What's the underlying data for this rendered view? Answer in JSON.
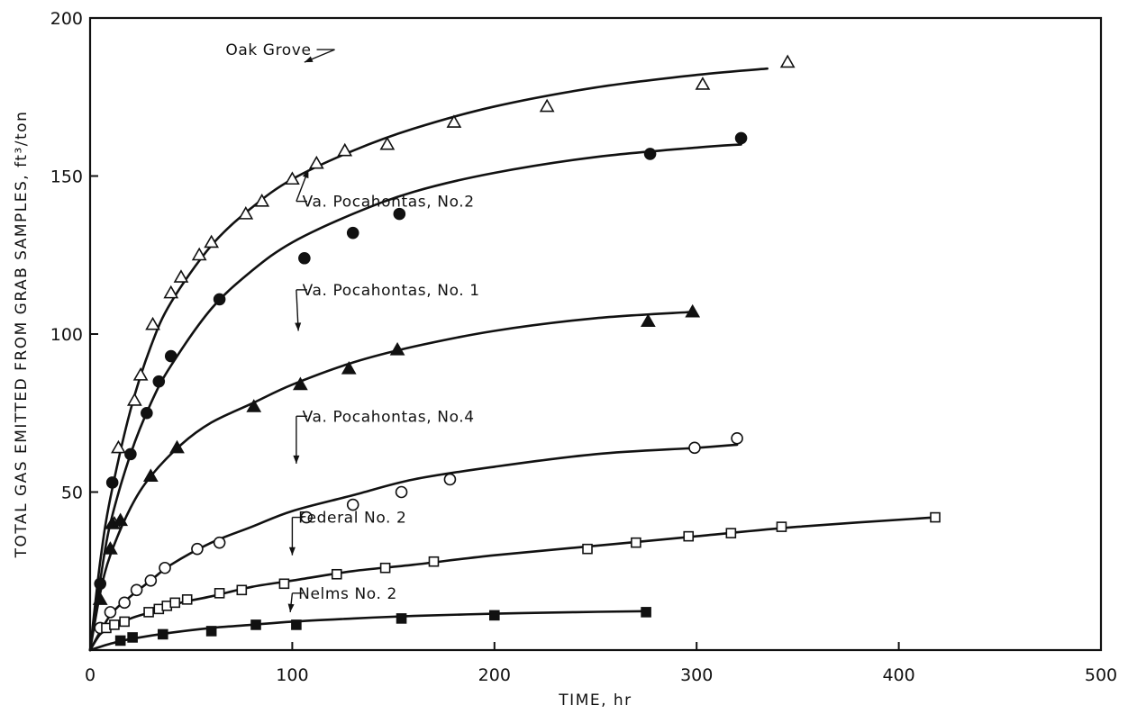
{
  "chart_data": {
    "type": "scatter",
    "title": "",
    "xlabel": "TIME, hr",
    "ylabel": "TOTAL GAS EMITTED FROM GRAB SAMPLES, ft³/ton",
    "xlim": [
      0,
      500
    ],
    "ylim": [
      0,
      200
    ],
    "xticks": [
      "0",
      "100",
      "200",
      "300",
      "400",
      "500"
    ],
    "yticks": [
      "50",
      "100",
      "150",
      "200"
    ],
    "grid": false,
    "series": [
      {
        "name": "Oak Grove",
        "marker": "open-triangle",
        "points": [
          [
            12,
            40
          ],
          [
            14,
            64
          ],
          [
            22,
            79
          ],
          [
            25,
            87
          ],
          [
            31,
            103
          ],
          [
            40,
            113
          ],
          [
            45,
            118
          ],
          [
            54,
            125
          ],
          [
            60,
            129
          ],
          [
            77,
            138
          ],
          [
            85,
            142
          ],
          [
            100,
            149
          ],
          [
            112,
            154
          ],
          [
            126,
            158
          ],
          [
            147,
            160
          ],
          [
            180,
            167
          ],
          [
            226,
            172
          ],
          [
            303,
            179
          ],
          [
            345,
            186
          ]
        ],
        "curve": [
          [
            0,
            0
          ],
          [
            5,
            28
          ],
          [
            10,
            48
          ],
          [
            20,
            76
          ],
          [
            30,
            96
          ],
          [
            40,
            110
          ],
          [
            60,
            128
          ],
          [
            80,
            140
          ],
          [
            100,
            149
          ],
          [
            130,
            158
          ],
          [
            160,
            165
          ],
          [
            200,
            172
          ],
          [
            250,
            178
          ],
          [
            300,
            182
          ],
          [
            335,
            184
          ]
        ]
      },
      {
        "name": "Va. Pocahontas, No.2",
        "marker": "filled-circle",
        "points": [
          [
            5,
            21
          ],
          [
            11,
            53
          ],
          [
            20,
            62
          ],
          [
            28,
            75
          ],
          [
            34,
            85
          ],
          [
            40,
            93
          ],
          [
            64,
            111
          ],
          [
            106,
            124
          ],
          [
            130,
            132
          ],
          [
            153,
            138
          ],
          [
            277,
            157
          ],
          [
            322,
            162
          ]
        ],
        "curve": [
          [
            0,
            0
          ],
          [
            5,
            22
          ],
          [
            10,
            40
          ],
          [
            20,
            62
          ],
          [
            30,
            78
          ],
          [
            40,
            90
          ],
          [
            60,
            108
          ],
          [
            80,
            120
          ],
          [
            100,
            129
          ],
          [
            130,
            138
          ],
          [
            160,
            145
          ],
          [
            200,
            151
          ],
          [
            250,
            156
          ],
          [
            300,
            159
          ],
          [
            322,
            160
          ]
        ]
      },
      {
        "name": "Va. Pocahontas, No. 1",
        "marker": "filled-triangle",
        "points": [
          [
            5,
            16
          ],
          [
            10,
            32
          ],
          [
            11,
            40
          ],
          [
            15,
            41
          ],
          [
            30,
            55
          ],
          [
            43,
            64
          ],
          [
            81,
            77
          ],
          [
            104,
            84
          ],
          [
            128,
            89
          ],
          [
            152,
            95
          ],
          [
            276,
            104
          ],
          [
            298,
            107
          ]
        ],
        "curve": [
          [
            0,
            0
          ],
          [
            5,
            18
          ],
          [
            10,
            30
          ],
          [
            20,
            45
          ],
          [
            30,
            55
          ],
          [
            45,
            65
          ],
          [
            60,
            72
          ],
          [
            80,
            78
          ],
          [
            100,
            84
          ],
          [
            130,
            91
          ],
          [
            160,
            96
          ],
          [
            200,
            101
          ],
          [
            250,
            105
          ],
          [
            298,
            107
          ]
        ]
      },
      {
        "name": "Va. Pocahontas, No.4",
        "marker": "open-circle",
        "points": [
          [
            5,
            7
          ],
          [
            10,
            12
          ],
          [
            17,
            15
          ],
          [
            23,
            19
          ],
          [
            30,
            22
          ],
          [
            37,
            26
          ],
          [
            53,
            32
          ],
          [
            64,
            34
          ],
          [
            107,
            42
          ],
          [
            130,
            46
          ],
          [
            154,
            50
          ],
          [
            178,
            54
          ],
          [
            299,
            64
          ],
          [
            320,
            67
          ]
        ],
        "curve": [
          [
            0,
            0
          ],
          [
            10,
            11
          ],
          [
            20,
            17
          ],
          [
            30,
            22
          ],
          [
            40,
            27
          ],
          [
            60,
            34
          ],
          [
            80,
            39
          ],
          [
            100,
            44
          ],
          [
            130,
            49
          ],
          [
            160,
            54
          ],
          [
            200,
            58
          ],
          [
            250,
            62
          ],
          [
            300,
            64
          ],
          [
            320,
            65
          ]
        ]
      },
      {
        "name": "Federal No. 2",
        "marker": "open-square",
        "points": [
          [
            8,
            7
          ],
          [
            12,
            8
          ],
          [
            17,
            9
          ],
          [
            29,
            12
          ],
          [
            34,
            13
          ],
          [
            38,
            14
          ],
          [
            42,
            15
          ],
          [
            48,
            16
          ],
          [
            64,
            18
          ],
          [
            75,
            19
          ],
          [
            96,
            21
          ],
          [
            122,
            24
          ],
          [
            146,
            26
          ],
          [
            170,
            28
          ],
          [
            246,
            32
          ],
          [
            270,
            34
          ],
          [
            296,
            36
          ],
          [
            317,
            37
          ],
          [
            342,
            39
          ],
          [
            418,
            42
          ]
        ],
        "curve": [
          [
            0,
            0
          ],
          [
            5,
            5
          ],
          [
            10,
            7
          ],
          [
            20,
            10
          ],
          [
            30,
            12
          ],
          [
            45,
            15
          ],
          [
            60,
            17
          ],
          [
            80,
            20
          ],
          [
            100,
            22
          ],
          [
            130,
            25
          ],
          [
            160,
            27
          ],
          [
            200,
            30
          ],
          [
            250,
            33
          ],
          [
            300,
            36
          ],
          [
            350,
            39
          ],
          [
            418,
            42
          ]
        ]
      },
      {
        "name": "Nelms No. 2",
        "marker": "filled-square",
        "points": [
          [
            15,
            3
          ],
          [
            21,
            4
          ],
          [
            36,
            5
          ],
          [
            60,
            6
          ],
          [
            82,
            8
          ],
          [
            102,
            8
          ],
          [
            154,
            10
          ],
          [
            200,
            11
          ],
          [
            275,
            12
          ]
        ],
        "curve": [
          [
            0,
            0
          ],
          [
            10,
            2
          ],
          [
            20,
            3.5
          ],
          [
            40,
            5.5
          ],
          [
            60,
            7
          ],
          [
            80,
            8
          ],
          [
            100,
            9
          ],
          [
            130,
            10
          ],
          [
            160,
            10.8
          ],
          [
            200,
            11.5
          ],
          [
            240,
            12
          ],
          [
            275,
            12.3
          ]
        ]
      }
    ],
    "annotations": [
      {
        "series": 0,
        "text": "Oak Grove",
        "text_at": [
          67,
          190
        ],
        "line_to": [
          102,
          190
        ],
        "arrow_to": [
          106,
          186
        ]
      },
      {
        "series": 1,
        "text": "Va. Pocahontas, No.2",
        "text_at": [
          105,
          142
        ],
        "line_to": [
          102,
          142
        ],
        "arrow_to": [
          108,
          152
        ]
      },
      {
        "series": 2,
        "text": "Va. Pocahontas, No. 1",
        "text_at": [
          105,
          114
        ],
        "line_to": [
          102,
          114
        ],
        "arrow_to": [
          103,
          101
        ]
      },
      {
        "series": 3,
        "text": "Va. Pocahontas, No.4",
        "text_at": [
          105,
          74
        ],
        "line_to": [
          102,
          74
        ],
        "arrow_to": [
          102,
          59
        ]
      },
      {
        "series": 4,
        "text": "Federal No. 2",
        "text_at": [
          103,
          42
        ],
        "line_to": [
          100,
          42
        ],
        "arrow_to": [
          100,
          30
        ]
      },
      {
        "series": 5,
        "text": "Nelms No. 2",
        "text_at": [
          103,
          18
        ],
        "line_to": [
          100,
          18
        ],
        "arrow_to": [
          99,
          12
        ]
      }
    ]
  }
}
